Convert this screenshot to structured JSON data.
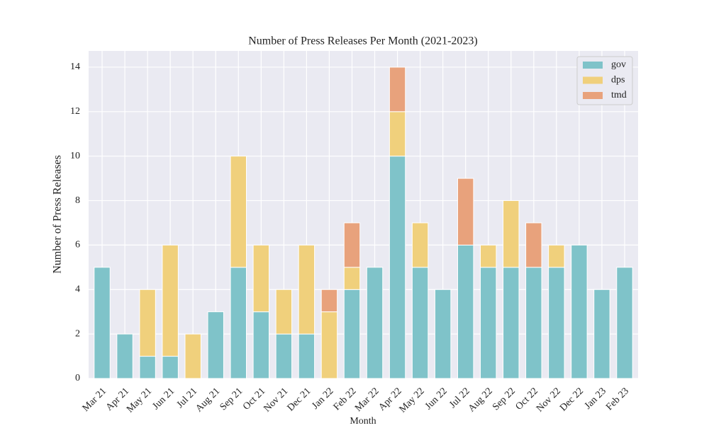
{
  "chart_data": {
    "type": "stacked_bar",
    "title": "Number of Press Releases Per Month (2021-2023)",
    "x_label": "Month",
    "y_label": "Number of Press Releases",
    "categories": [
      "Mar 21",
      "Apr 21",
      "May 21",
      "Jun 21",
      "Jul 21",
      "Aug 21",
      "Sep 21",
      "Oct 21",
      "Nov 21",
      "Dec 21",
      "Jan 22",
      "Feb 22",
      "Mar 22",
      "Apr 22",
      "May 22",
      "Jun 22",
      "Jul 22",
      "Aug 22",
      "Sep 22",
      "Oct 22",
      "Nov 22",
      "Dec 22",
      "Jan 23",
      "Feb 23"
    ],
    "series": [
      {
        "name": "gov",
        "color": "#7fc3c9",
        "values": [
          5,
          2,
          1,
          1,
          0,
          3,
          5,
          3,
          2,
          2,
          0,
          4,
          5,
          10,
          5,
          4,
          6,
          5,
          5,
          5,
          5,
          6,
          4,
          5
        ]
      },
      {
        "name": "dps",
        "color": "#f0d07c",
        "values": [
          0,
          0,
          3,
          5,
          2,
          0,
          5,
          3,
          2,
          4,
          3,
          1,
          0,
          2,
          2,
          0,
          0,
          1,
          3,
          0,
          1,
          0,
          0,
          0
        ]
      },
      {
        "name": "tmd",
        "color": "#e8a27c",
        "values": [
          0,
          0,
          0,
          0,
          0,
          0,
          0,
          0,
          0,
          0,
          1,
          2,
          0,
          2,
          0,
          0,
          3,
          0,
          0,
          2,
          0,
          0,
          0,
          0
        ]
      }
    ],
    "ylim": [
      0,
      14.73
    ],
    "yticks": [
      0,
      2,
      4,
      6,
      8,
      10,
      12,
      14
    ],
    "grid": true,
    "legend": "upper right"
  }
}
